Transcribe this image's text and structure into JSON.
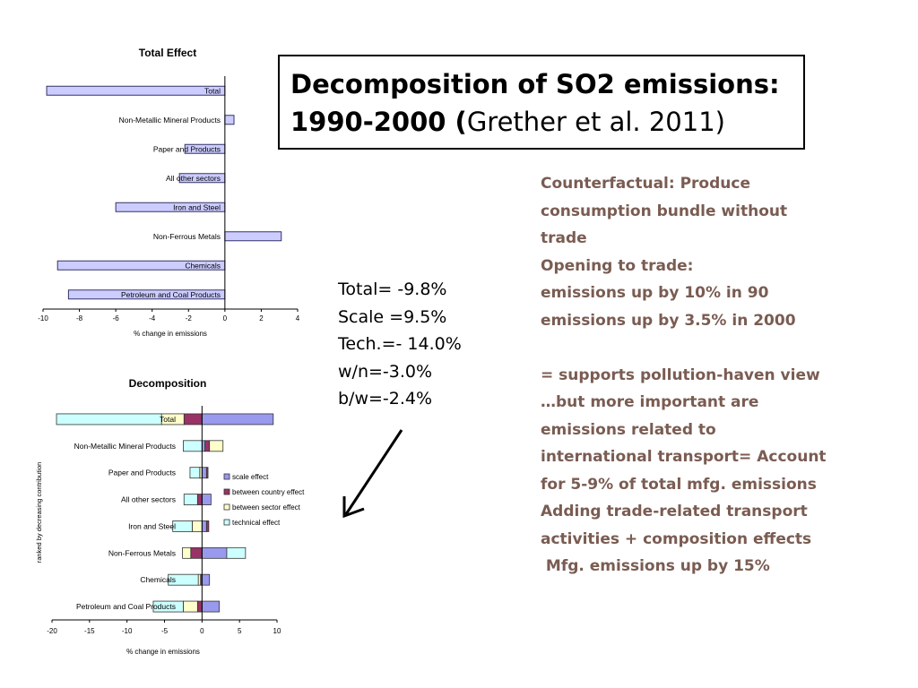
{
  "slide": {
    "title_line1": "Decomposition of SO2 emissions:",
    "title_line2_bold": "1990-2000 (",
    "title_line2_rest": "Grether et al. 2011)",
    "stats": [
      "Total= -9.8%",
      "Scale =9.5%",
      "Tech.=- 14.0%",
      "w/n=-3.0%",
      "b/w=-2.4%"
    ],
    "notes": [
      "Counterfactual: Produce",
      "consumption bundle without",
      "trade",
      "Opening to trade:",
      "emissions up by 10% in 90",
      "emissions up  by 3.5% in 2000",
      "",
      "= supports pollution-haven view",
      "…but more important are",
      "emissions related to",
      "international transport= Account",
      "for 5-9% of total mfg. emissions",
      "Adding trade-related transport",
      "activities + composition effects",
      "⁠ Mfg. emissions up by 15%"
    ],
    "colors": {
      "notes_text": "#7a5c52",
      "bar_fill": "#ccccff",
      "arrow": "#000000"
    }
  },
  "chart_data": [
    {
      "type": "bar",
      "orientation": "horizontal",
      "title": "Total Effect",
      "xlabel": "% change in emissions",
      "xlim": [
        -10,
        4
      ],
      "xticks": [
        -10,
        -8,
        -6,
        -4,
        -2,
        0,
        2,
        4
      ],
      "categories": [
        "Total",
        "Non-Metallic Mineral Products",
        "Paper and Products",
        "All other sectors",
        "Iron and Steel",
        "Non-Ferrous Metals",
        "Chemicals",
        "Petroleum and Coal Products"
      ],
      "values": [
        -9.8,
        0.5,
        -2.2,
        -2.5,
        -6.0,
        3.1,
        -9.2,
        -8.6
      ],
      "color": "#ccccff"
    },
    {
      "type": "bar",
      "orientation": "horizontal",
      "stacked": true,
      "title": "Decomposition",
      "xlabel": "% change in emissions",
      "ylabel": "ranked by decreasing contribution",
      "xlim": [
        -20,
        10
      ],
      "xticks": [
        -20,
        -15,
        -10,
        -5,
        0,
        5,
        10
      ],
      "categories": [
        "Total",
        "Non-Metallic Mineral Products",
        "Paper and Products",
        "All other sectors",
        "Iron and Steel",
        "Non-Ferrous Metals",
        "Chemicals",
        "Petroleum and Coal Products"
      ],
      "series": [
        {
          "name": "scale effect",
          "color": "#9999ee",
          "values": [
            9.5,
            0.4,
            0.6,
            1.2,
            0.6,
            3.3,
            1.0,
            2.3
          ]
        },
        {
          "name": "between country effect",
          "color": "#993366",
          "values": [
            -2.4,
            0.6,
            0.2,
            -0.6,
            0.3,
            -1.5,
            -0.2,
            -0.6
          ]
        },
        {
          "name": "between sector effect",
          "color": "#ffffcc",
          "values": [
            -3.0,
            1.8,
            -0.3,
            0.0,
            -1.3,
            -1.1,
            -0.3,
            -1.9
          ]
        },
        {
          "name": "technical effect",
          "color": "#ccffff",
          "values": [
            -14.0,
            -2.5,
            -1.3,
            -1.8,
            -2.6,
            2.5,
            -4.0,
            -4.0
          ]
        }
      ],
      "legend_position": "right"
    }
  ]
}
